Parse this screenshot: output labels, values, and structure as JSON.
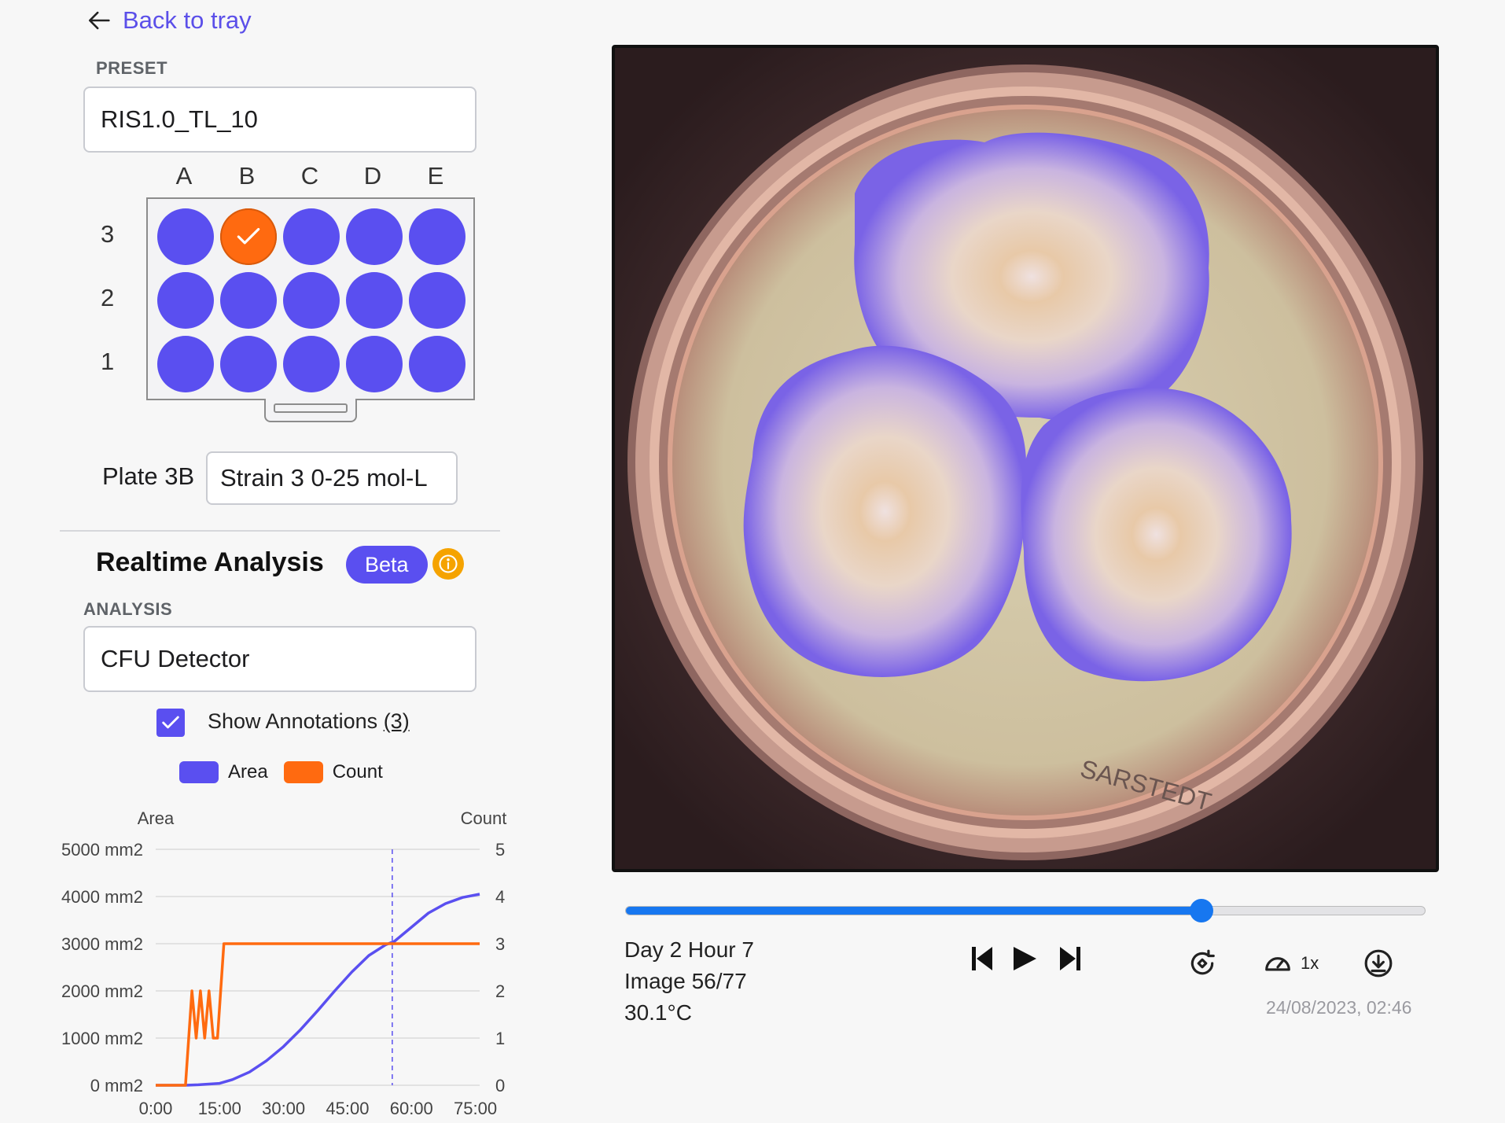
{
  "nav": {
    "back_label": "Back to tray"
  },
  "preset": {
    "label": "PRESET",
    "value": "RIS1.0_TL_10"
  },
  "tray": {
    "columns": [
      "A",
      "B",
      "C",
      "D",
      "E"
    ],
    "rows": [
      "3",
      "2",
      "1"
    ],
    "selected_well": "3B"
  },
  "plate": {
    "label": "Plate 3B",
    "name_value": "Strain 3 0-25 mol-L"
  },
  "realtime": {
    "title": "Realtime Analysis",
    "badge": "Beta",
    "info_icon": "info-icon"
  },
  "analysis": {
    "label": "ANALYSIS",
    "value": "CFU Detector",
    "show_annotations_label": "Show Annotations",
    "annotation_count": "(3)",
    "show_annotations_checked": true
  },
  "legend": [
    {
      "name": "Area",
      "color": "#5a4ff0"
    },
    {
      "name": "Count",
      "color": "#ff6a10"
    }
  ],
  "chart_data": {
    "type": "line",
    "left_axis_title": "Area",
    "right_axis_title": "Count",
    "y_left_ticks": [
      "0 mm2",
      "1000 mm2",
      "2000 mm2",
      "3000 mm2",
      "4000 mm2",
      "5000 mm2"
    ],
    "y_right_ticks": [
      "0",
      "1",
      "2",
      "3",
      "4",
      "5"
    ],
    "x_ticks": [
      "0:00",
      "15:00",
      "30:00",
      "45:00",
      "60:00",
      "75:00"
    ],
    "ylim_left": [
      0,
      5000
    ],
    "ylim_right": [
      0,
      5
    ],
    "xlim": [
      0,
      76
    ],
    "current_x": 55.5,
    "series": [
      {
        "name": "Area",
        "axis": "left",
        "color": "#5a4ff0",
        "x": [
          0,
          7,
          10,
          15,
          18,
          22,
          26,
          30,
          34,
          38,
          42,
          46,
          50,
          54,
          56,
          60,
          64,
          68,
          72,
          76
        ],
        "y": [
          0,
          0,
          10,
          40,
          120,
          280,
          520,
          820,
          1180,
          1580,
          2000,
          2400,
          2750,
          2980,
          3050,
          3350,
          3650,
          3850,
          3980,
          4050
        ]
      },
      {
        "name": "Count",
        "axis": "right",
        "color": "#ff6a10",
        "x": [
          0,
          7,
          8.5,
          9.5,
          10.5,
          11.5,
          12.5,
          13.5,
          14.5,
          16,
          76
        ],
        "y": [
          0,
          0,
          2,
          1,
          2,
          1,
          2,
          1,
          1,
          3,
          3
        ]
      }
    ]
  },
  "playback": {
    "progress": 0.72,
    "day_hour": "Day 2 Hour 7",
    "image_index": "Image 56/77",
    "temperature": "30.1°C",
    "speed": "1x",
    "timestamp": "24/08/2023, 02:46"
  }
}
